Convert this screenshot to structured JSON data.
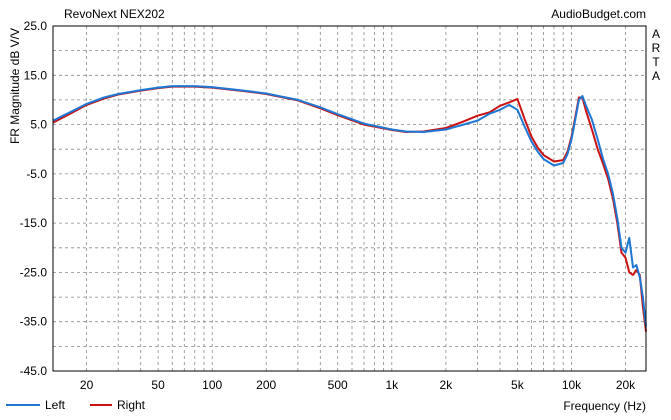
{
  "chart_data": {
    "type": "line",
    "title": "RevoNext NEX202",
    "watermark": "AudioBudget.com",
    "side_label": [
      "A",
      "R",
      "T",
      "A"
    ],
    "xlabel": "Frequency (Hz)",
    "ylabel": "FR Magnitude dB V/V",
    "x_scale": "log",
    "xlim": [
      13,
      26000
    ],
    "ylim": [
      -45,
      25
    ],
    "grid": true,
    "legend_position": "bottom-left",
    "x_ticks": [
      {
        "value": 20,
        "label": "20"
      },
      {
        "value": 50,
        "label": "50"
      },
      {
        "value": 100,
        "label": "100"
      },
      {
        "value": 200,
        "label": "200"
      },
      {
        "value": 500,
        "label": "500"
      },
      {
        "value": 1000,
        "label": "1k"
      },
      {
        "value": 2000,
        "label": "2k"
      },
      {
        "value": 5000,
        "label": "5k"
      },
      {
        "value": 10000,
        "label": "10k"
      },
      {
        "value": 20000,
        "label": "20k"
      }
    ],
    "y_ticks": [
      {
        "value": 25,
        "label": "25.0"
      },
      {
        "value": 15,
        "label": "15.0"
      },
      {
        "value": 5,
        "label": "5.0"
      },
      {
        "value": -5,
        "label": "-5.0"
      },
      {
        "value": -15,
        "label": "-15.0"
      },
      {
        "value": -25,
        "label": "-25.0"
      },
      {
        "value": -35,
        "label": "-35.0"
      },
      {
        "value": -45,
        "label": "-45.0"
      }
    ],
    "series": [
      {
        "name": "Left",
        "color": "#1f77d4",
        "points": [
          [
            13,
            5.8
          ],
          [
            16,
            7.4
          ],
          [
            20,
            9.2
          ],
          [
            25,
            10.5
          ],
          [
            30,
            11.2
          ],
          [
            40,
            12.0
          ],
          [
            50,
            12.5
          ],
          [
            60,
            12.8
          ],
          [
            80,
            12.8
          ],
          [
            100,
            12.6
          ],
          [
            150,
            11.9
          ],
          [
            200,
            11.3
          ],
          [
            300,
            10.0
          ],
          [
            400,
            8.5
          ],
          [
            500,
            7.1
          ],
          [
            700,
            5.2
          ],
          [
            1000,
            4.0
          ],
          [
            1200,
            3.6
          ],
          [
            1500,
            3.5
          ],
          [
            2000,
            4.0
          ],
          [
            2500,
            5.0
          ],
          [
            3000,
            5.8
          ],
          [
            3500,
            7.2
          ],
          [
            4000,
            8.0
          ],
          [
            4500,
            9.0
          ],
          [
            5000,
            8.0
          ],
          [
            5500,
            4.5
          ],
          [
            6000,
            1.5
          ],
          [
            6500,
            -0.5
          ],
          [
            7000,
            -2.0
          ],
          [
            8000,
            -3.3
          ],
          [
            9000,
            -2.8
          ],
          [
            9500,
            -1.0
          ],
          [
            10000,
            2.0
          ],
          [
            10500,
            6.0
          ],
          [
            11000,
            10.0
          ],
          [
            11500,
            10.8
          ],
          [
            12000,
            9.0
          ],
          [
            13000,
            6.0
          ],
          [
            14000,
            2.0
          ],
          [
            15000,
            -2.0
          ],
          [
            16000,
            -5.0
          ],
          [
            17000,
            -9.0
          ],
          [
            18000,
            -14.0
          ],
          [
            19000,
            -20.0
          ],
          [
            20000,
            -21.0
          ],
          [
            21000,
            -18.0
          ],
          [
            22000,
            -24.0
          ],
          [
            23000,
            -23.5
          ],
          [
            24000,
            -26.0
          ],
          [
            25000,
            -30.0
          ],
          [
            26000,
            -36.0
          ]
        ]
      },
      {
        "name": "Right",
        "color": "#cc1111",
        "points": [
          [
            13,
            5.4
          ],
          [
            16,
            7.1
          ],
          [
            20,
            9.0
          ],
          [
            25,
            10.3
          ],
          [
            30,
            11.1
          ],
          [
            40,
            11.9
          ],
          [
            50,
            12.4
          ],
          [
            60,
            12.7
          ],
          [
            80,
            12.7
          ],
          [
            100,
            12.5
          ],
          [
            150,
            11.8
          ],
          [
            200,
            11.2
          ],
          [
            300,
            9.9
          ],
          [
            400,
            8.3
          ],
          [
            500,
            6.9
          ],
          [
            700,
            5.0
          ],
          [
            1000,
            3.9
          ],
          [
            1200,
            3.5
          ],
          [
            1500,
            3.6
          ],
          [
            2000,
            4.3
          ],
          [
            2500,
            5.6
          ],
          [
            3000,
            6.8
          ],
          [
            3500,
            7.5
          ],
          [
            4000,
            8.8
          ],
          [
            4500,
            9.5
          ],
          [
            5000,
            10.2
          ],
          [
            5500,
            6.0
          ],
          [
            6000,
            2.5
          ],
          [
            6500,
            0.3
          ],
          [
            7000,
            -1.2
          ],
          [
            8000,
            -2.5
          ],
          [
            9000,
            -2.2
          ],
          [
            9500,
            -0.5
          ],
          [
            10000,
            2.5
          ],
          [
            10500,
            6.5
          ],
          [
            11000,
            10.5
          ],
          [
            11500,
            10.5
          ],
          [
            12000,
            8.0
          ],
          [
            13000,
            4.0
          ],
          [
            14000,
            0.0
          ],
          [
            15000,
            -3.0
          ],
          [
            16000,
            -6.0
          ],
          [
            17000,
            -10.0
          ],
          [
            18000,
            -15.0
          ],
          [
            19000,
            -21.0
          ],
          [
            20000,
            -22.0
          ],
          [
            21000,
            -25.0
          ],
          [
            22000,
            -25.5
          ],
          [
            23000,
            -24.5
          ],
          [
            24000,
            -25.5
          ],
          [
            25000,
            -32.0
          ],
          [
            26000,
            -37.0
          ]
        ]
      }
    ]
  }
}
